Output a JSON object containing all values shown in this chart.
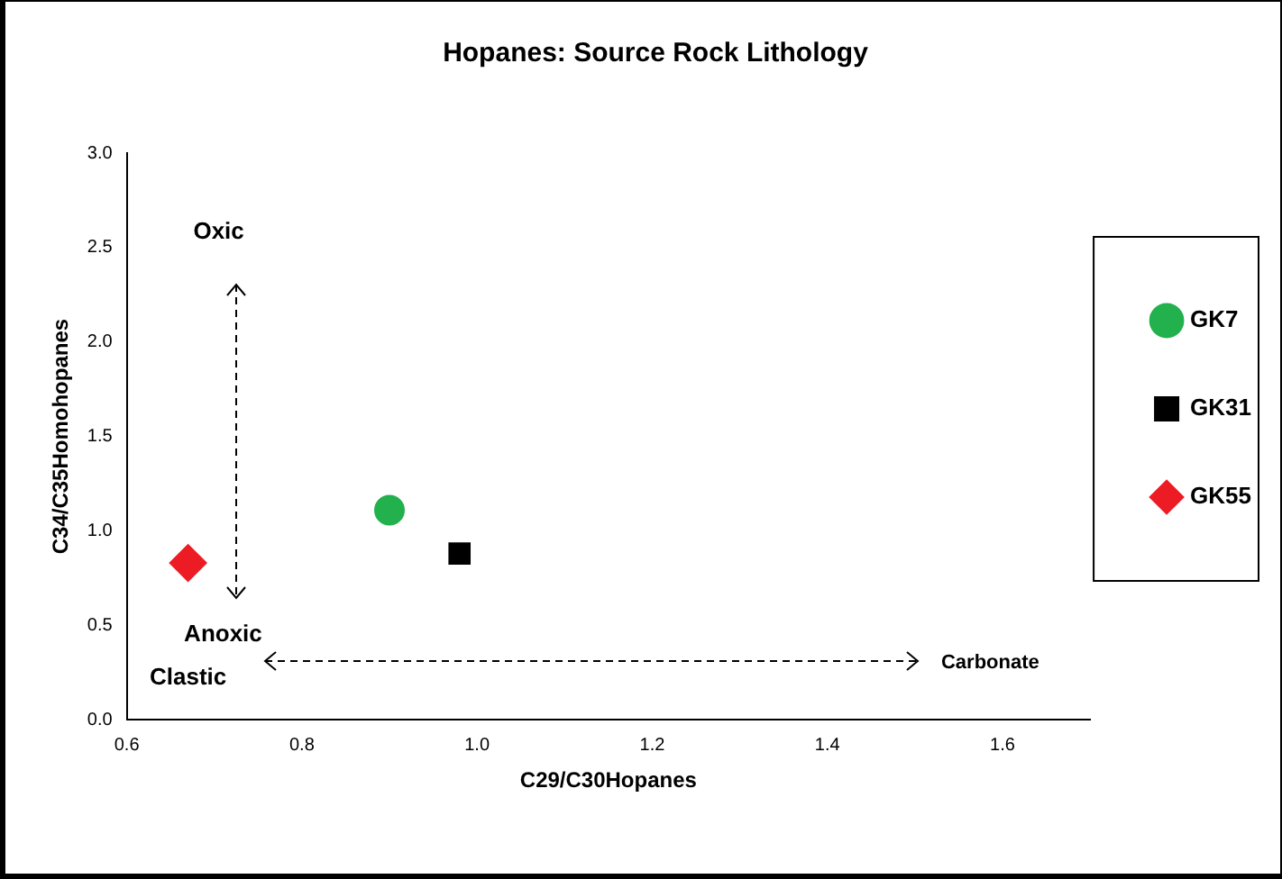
{
  "chart_data": {
    "type": "scatter",
    "title": "Hopanes: Source Rock Lithology",
    "xlabel": "C29/C30Hopanes",
    "ylabel": "C34/C35Homohopanes",
    "xlim": [
      0.6,
      1.7
    ],
    "xticks": [
      0.6,
      0.8,
      {
        "value": 1,
        "label": "1.0"
      },
      1.2,
      1.4,
      1.6
    ],
    "ylim": [
      0,
      3
    ],
    "yticks": [
      {
        "value": 0,
        "label": "0.0"
      },
      0.5,
      {
        "value": 1,
        "label": "1.0"
      },
      1.5,
      {
        "value": 2,
        "label": "2.0"
      },
      2.5,
      {
        "value": 3,
        "label": "3.0"
      }
    ],
    "grid": false,
    "legend": "right",
    "annotations": [
      "Oxic",
      "Anoxic",
      "Clastic",
      "Carbonate"
    ],
    "series": [
      {
        "name": "GK7",
        "color": "#22b14c",
        "marker": "circle",
        "x": [
          0.9
        ],
        "values": [
          1.11
        ]
      },
      {
        "name": "GK31",
        "color": "#000000",
        "marker": "square",
        "x": [
          0.98
        ],
        "values": [
          0.88
        ]
      },
      {
        "name": "GK55",
        "color": "#ed1c24",
        "marker": "diamond",
        "x": [
          0.67
        ],
        "values": [
          0.83
        ]
      }
    ]
  }
}
